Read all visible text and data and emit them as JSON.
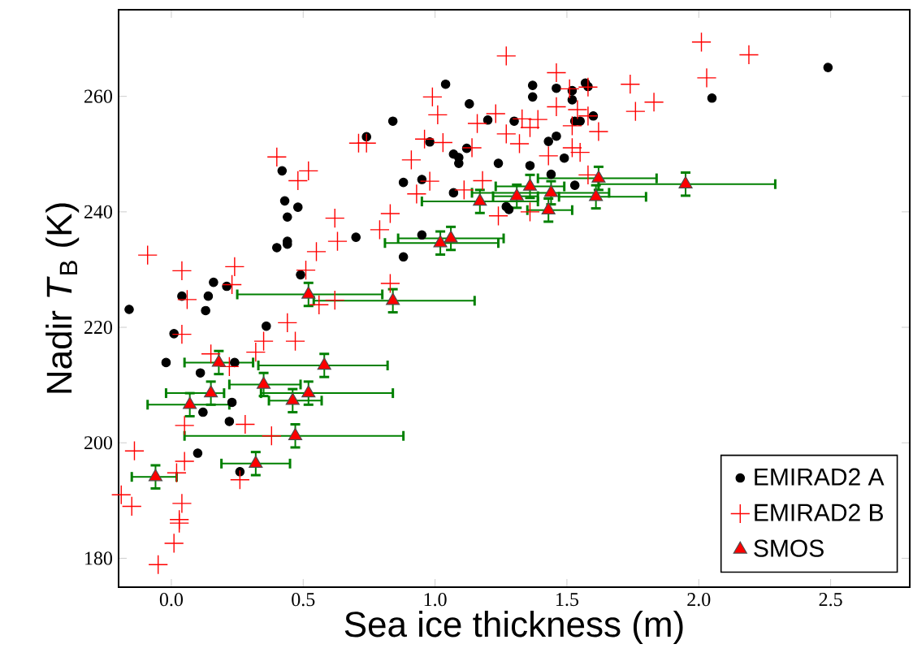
{
  "chart_data": {
    "type": "scatter",
    "xlabel": "Sea ice thickness (m)",
    "ylabel": "Nadir *T*$_{B}$ (K)",
    "xlim": [
      -0.2,
      2.8
    ],
    "ylim": [
      175,
      275
    ],
    "xticks": [
      {
        "value": 0,
        "label": "0.0"
      },
      {
        "value": 0.5,
        "label": "0.5"
      },
      {
        "value": 1,
        "label": "1.0"
      },
      {
        "value": 1.5,
        "label": "1.5"
      },
      {
        "value": 2,
        "label": "2.0"
      },
      {
        "value": 2.5,
        "label": "2.5"
      }
    ],
    "yticks": [
      180,
      200,
      220,
      240,
      260
    ],
    "legend": "bottom right",
    "series": [
      {
        "name": "EMIRAD2 A",
        "color": "#000000",
        "marker": "circle",
        "x": [
          0.74,
          0.42,
          0.43,
          0.48,
          0.44,
          0.44,
          0.44,
          0.4,
          0.7,
          0.49,
          0.16,
          0.21,
          0.04,
          0.14,
          -0.16,
          0.13,
          0.36,
          0.01,
          -0.02,
          0.24,
          0.11,
          0.23,
          0.12,
          0.22,
          0.1,
          0.26,
          1.04,
          1.13,
          0.84,
          1.2,
          1.3,
          1.37,
          1.37,
          1.46,
          1.52,
          1.57,
          1.58,
          1.52,
          1.6,
          1.53,
          1.55,
          0.98,
          1.07,
          1.09,
          1.09,
          1.12,
          1.24,
          1.43,
          1.46,
          1.49,
          1.36,
          1.44,
          1.53,
          0.88,
          0.95,
          1.07,
          1.27,
          1.28,
          0.95,
          0.88,
          2.05,
          2.49
        ],
        "values": [
          253.0,
          247.1,
          241.9,
          240.8,
          239.1,
          234.9,
          234.4,
          233.8,
          235.6,
          229.1,
          227.8,
          227.1,
          225.4,
          225.4,
          223.1,
          222.9,
          220.2,
          218.9,
          213.9,
          213.9,
          212.1,
          207.0,
          205.3,
          203.7,
          198.2,
          195.0,
          262.1,
          258.7,
          255.7,
          255.9,
          255.7,
          261.9,
          259.9,
          261.4,
          261.0,
          262.3,
          261.7,
          259.4,
          256.6,
          255.7,
          255.7,
          252.1,
          250.0,
          249.4,
          248.4,
          251.0,
          248.4,
          252.2,
          253.1,
          249.3,
          248.0,
          246.5,
          244.6,
          245.1,
          245.6,
          243.3,
          240.9,
          240.4,
          236.0,
          232.2,
          259.7,
          265.0
        ]
      },
      {
        "name": "EMIRAD2 B",
        "color": "#ff0000",
        "marker": "cross",
        "x": [
          -0.09,
          0.04,
          0.24,
          0.23,
          0.4,
          0.52,
          0.48,
          0.71,
          0.74,
          0.62,
          0.63,
          0.55,
          0.51,
          0.79,
          0.06,
          0.56,
          0.62,
          0.44,
          0.47,
          0.35,
          0.32,
          0.04,
          0.15,
          0.22,
          0.28,
          0.38,
          0.05,
          -0.14,
          0.05,
          0.02,
          0.26,
          -0.15,
          0.04,
          0.03,
          0.03,
          0.01,
          -0.05,
          -0.19,
          1.27,
          1.46,
          1.74,
          1.76,
          1.51,
          1.58,
          1.54,
          1.58,
          1.62,
          1.46,
          1.52,
          1.52,
          1.55,
          1.43,
          1.58,
          0.99,
          1.01,
          1.23,
          1.33,
          1.39,
          1.36,
          1.27,
          1.32,
          1.16,
          0.96,
          1.03,
          1.14,
          0.91,
          0.98,
          0.93,
          0.83,
          1.18,
          1.11,
          1.24,
          1.36,
          0.83,
          2.01,
          2.19,
          2.03,
          1.83
        ],
        "values": [
          232.5,
          229.8,
          230.5,
          227.4,
          249.5,
          247.1,
          245.4,
          251.9,
          251.9,
          238.9,
          234.9,
          233.1,
          229.9,
          236.9,
          224.8,
          223.9,
          224.7,
          220.8,
          217.6,
          217.6,
          215.7,
          218.8,
          215.4,
          213.2,
          203.2,
          201.2,
          203.0,
          198.6,
          196.8,
          194.8,
          193.6,
          189.0,
          189.5,
          186.7,
          186.1,
          182.6,
          178.9,
          191.0,
          267.0,
          264.1,
          262.1,
          257.4,
          261.3,
          261.6,
          257.7,
          256.6,
          253.9,
          258.2,
          254.9,
          251.1,
          250.3,
          249.7,
          246.4,
          259.9,
          256.8,
          257.0,
          256.1,
          256.0,
          254.6,
          253.5,
          251.8,
          255.3,
          252.6,
          252.0,
          251.1,
          249.0,
          245.3,
          243.1,
          239.7,
          245.4,
          243.8,
          239.3,
          240.0,
          227.6,
          269.4,
          267.2,
          263.2,
          259.0
        ]
      },
      {
        "name": "SMOS",
        "color": "#ff0000",
        "marker": "triangle",
        "x": [
          -0.06,
          0.07,
          0.15,
          0.18,
          0.35,
          0.46,
          0.52,
          0.58,
          0.47,
          0.32,
          0.52,
          0.84,
          1.02,
          1.06,
          1.17,
          1.31,
          1.36,
          1.44,
          1.43,
          1.62,
          1.61,
          1.95
        ],
        "values": [
          194.1,
          206.6,
          208.6,
          213.9,
          210.1,
          207.3,
          208.6,
          213.4,
          201.2,
          196.4,
          225.7,
          224.6,
          234.6,
          235.4,
          241.8,
          242.7,
          244.4,
          243.3,
          240.3,
          245.8,
          242.6,
          244.8
        ],
        "errors": [
          2,
          2,
          2,
          2,
          2,
          2,
          2,
          2,
          2,
          2,
          2,
          2,
          2,
          2,
          2,
          2,
          2,
          2,
          2,
          2,
          2,
          2
        ],
        "xerrors": [
          [
            -0.15,
            0.02
          ],
          [
            -0.09,
            0.22
          ],
          [
            -0.02,
            0.2
          ],
          [
            0.05,
            0.31
          ],
          [
            0.22,
            0.49
          ],
          [
            0.37,
            0.57
          ],
          [
            0.34,
            0.84
          ],
          [
            0.33,
            0.82
          ],
          [
            0.05,
            0.88
          ],
          [
            0.19,
            0.45
          ],
          [
            0.25,
            0.8
          ],
          [
            0.54,
            1.15
          ],
          [
            0.81,
            1.24
          ],
          [
            0.86,
            1.26
          ],
          [
            0.95,
            1.39
          ],
          [
            1.22,
            1.39
          ],
          [
            1.23,
            1.49
          ],
          [
            1.14,
            1.66
          ],
          [
            1.35,
            1.52
          ],
          [
            1.39,
            1.84
          ],
          [
            1.47,
            1.8
          ],
          [
            1.62,
            2.29
          ]
        ]
      }
    ]
  }
}
